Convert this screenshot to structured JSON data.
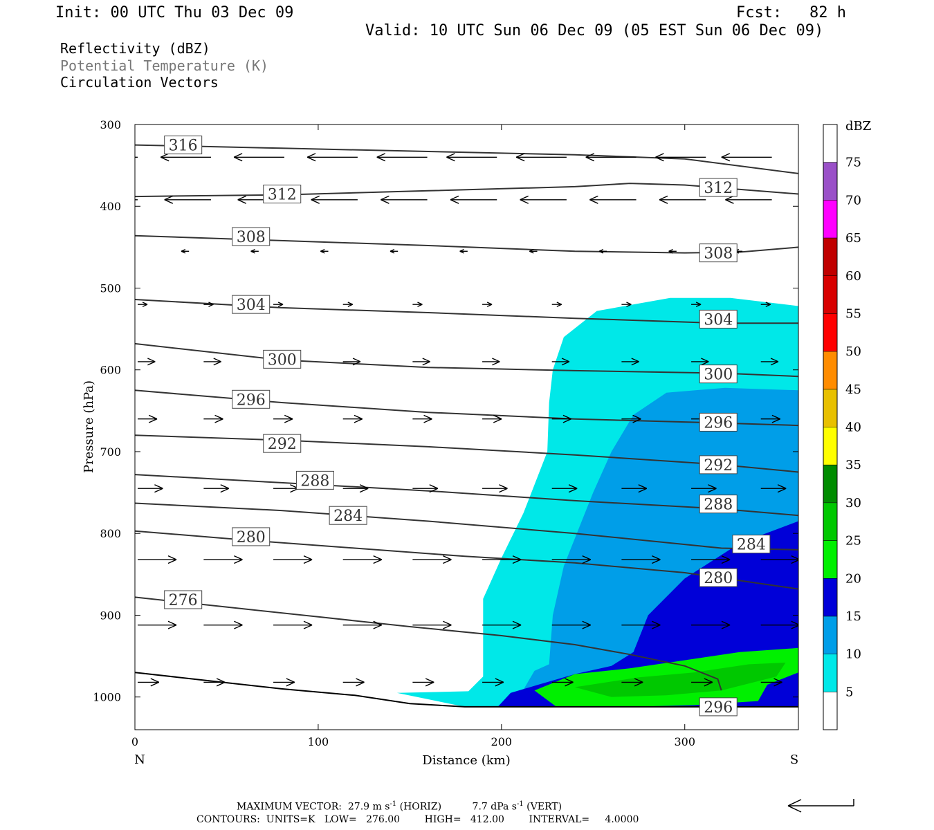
{
  "header": {
    "init": "Init: 00 UTC Thu 03 Dec 09",
    "fcst": "Fcst:   82 h",
    "valid": "Valid: 10 UTC Sun 06 Dec 09 (05 EST Sun 06 Dec 09)"
  },
  "fields": [
    {
      "label": "Reflectivity (dBZ)",
      "color": "#000000"
    },
    {
      "label": "Potential Temperature (K)",
      "color": "#777777"
    },
    {
      "label": "Circulation Vectors",
      "color": "#000000"
    }
  ],
  "footer": {
    "max_vector_prefix": "MAXIMUM VECTOR:  27.9 m s",
    "max_vector_mid": " (HORIZ)          7.7 dPa s",
    "max_vector_suffix": " (VERT)",
    "superscript": "-1",
    "contours": "CONTOURS:  UNITS=K   LOW=   276.00        HIGH=   412.00        INTERVAL=     4.0000"
  },
  "chart_data": {
    "type": "cross-section",
    "xlabel": "Distance (km)",
    "ylabel": "Pressure (hPa)",
    "xlim": [
      0,
      362
    ],
    "ylim": [
      1040,
      300
    ],
    "x_ticks": [
      0,
      100,
      200,
      300
    ],
    "y_ticks": [
      300,
      400,
      500,
      600,
      700,
      800,
      900,
      1000
    ],
    "x_end_labels": {
      "left": "N",
      "right": "S"
    },
    "colorbar": {
      "unit": "dBZ",
      "levels": [
        0,
        5,
        10,
        15,
        20,
        25,
        30,
        35,
        40,
        45,
        50,
        55,
        60,
        65,
        70,
        75,
        80
      ],
      "tick_labels": [
        "5",
        "10",
        "15",
        "20",
        "25",
        "30",
        "35",
        "40",
        "45",
        "50",
        "55",
        "60",
        "65",
        "70",
        "75"
      ],
      "colors": [
        "#ffffff",
        "#00e8e8",
        "#009ee8",
        "#0000d8",
        "#00f000",
        "#00c800",
        "#008c00",
        "#ffff00",
        "#e8c000",
        "#ff8c00",
        "#ff0000",
        "#d80000",
        "#c00000",
        "#ff00ff",
        "#9a50c8",
        "#ffffff"
      ]
    },
    "reflectivity_regions": [
      {
        "dbz": 5,
        "points": [
          [
            143,
            995
          ],
          [
            182,
            993
          ],
          [
            190,
            975
          ],
          [
            190,
            880
          ],
          [
            200,
            830
          ],
          [
            212,
            775
          ],
          [
            225,
            700
          ],
          [
            226,
            640
          ],
          [
            228,
            600
          ],
          [
            234,
            560
          ],
          [
            252,
            528
          ],
          [
            292,
            512
          ],
          [
            325,
            512
          ],
          [
            362,
            522
          ],
          [
            362,
            1012
          ],
          [
            180,
            1012
          ]
        ]
      },
      {
        "dbz": 10,
        "points": [
          [
            182,
            1010
          ],
          [
            207,
            1010
          ],
          [
            218,
            968
          ],
          [
            226,
            960
          ],
          [
            228,
            900
          ],
          [
            234,
            840
          ],
          [
            250,
            750
          ],
          [
            260,
            700
          ],
          [
            272,
            655
          ],
          [
            290,
            628
          ],
          [
            322,
            622
          ],
          [
            362,
            625
          ],
          [
            362,
            1012
          ]
        ]
      },
      {
        "dbz": 15,
        "points": [
          [
            198,
            1012
          ],
          [
            205,
            995
          ],
          [
            220,
            985
          ],
          [
            240,
            972
          ],
          [
            260,
            962
          ],
          [
            272,
            945
          ],
          [
            280,
            900
          ],
          [
            300,
            855
          ],
          [
            330,
            812
          ],
          [
            362,
            785
          ],
          [
            362,
            1012
          ]
        ]
      },
      {
        "dbz": 20,
        "points": [
          [
            218,
            992
          ],
          [
            240,
            972
          ],
          [
            270,
            965
          ],
          [
            300,
            955
          ],
          [
            330,
            945
          ],
          [
            362,
            940
          ],
          [
            362,
            970
          ],
          [
            345,
            985
          ],
          [
            340,
            1005
          ],
          [
            305,
            1010
          ],
          [
            270,
            1012
          ],
          [
            230,
            1012
          ]
        ]
      },
      {
        "dbz": 25,
        "points": [
          [
            240,
            988
          ],
          [
            275,
            976
          ],
          [
            305,
            970
          ],
          [
            335,
            960
          ],
          [
            355,
            958
          ],
          [
            350,
            975
          ],
          [
            320,
            992
          ],
          [
            290,
            998
          ],
          [
            260,
            1000
          ]
        ]
      }
    ],
    "theta_contours": [
      {
        "value": 276,
        "label_x": 18,
        "points": [
          [
            0,
            878
          ],
          [
            50,
            890
          ],
          [
            100,
            902
          ],
          [
            150,
            914
          ],
          [
            200,
            925
          ],
          [
            240,
            936
          ],
          [
            270,
            948
          ],
          [
            300,
            962
          ],
          [
            318,
            978
          ],
          [
            320,
            992
          ]
        ]
      },
      {
        "value": 280,
        "label_x": 55,
        "points": [
          [
            0,
            797
          ],
          [
            60,
            808
          ],
          [
            120,
            818
          ],
          [
            180,
            828
          ],
          [
            240,
            836
          ],
          [
            300,
            848
          ],
          [
            362,
            868
          ]
        ]
      },
      {
        "value": 284,
        "label_x": 109,
        "label_y": 763,
        "points": [
          [
            0,
            763
          ],
          [
            80,
            772
          ],
          [
            160,
            785
          ],
          [
            240,
            800
          ],
          [
            320,
            818
          ],
          [
            362,
            820
          ]
        ]
      },
      {
        "value": 288,
        "label_x": 91,
        "label_y": 735,
        "points": [
          [
            0,
            728
          ],
          [
            80,
            738
          ],
          [
            160,
            748
          ],
          [
            240,
            760
          ],
          [
            320,
            770
          ],
          [
            362,
            778
          ]
        ]
      },
      {
        "value": 292,
        "label_x": 72,
        "points": [
          [
            0,
            680
          ],
          [
            80,
            686
          ],
          [
            160,
            694
          ],
          [
            240,
            704
          ],
          [
            320,
            716
          ],
          [
            362,
            725
          ]
        ]
      },
      {
        "value": 296,
        "label_x": 55,
        "points": [
          [
            0,
            625
          ],
          [
            80,
            640
          ],
          [
            160,
            652
          ],
          [
            240,
            660
          ],
          [
            320,
            665
          ],
          [
            362,
            668
          ]
        ]
      },
      {
        "value": 300,
        "label_x": 72,
        "points": [
          [
            0,
            568
          ],
          [
            80,
            588
          ],
          [
            160,
            597
          ],
          [
            240,
            601
          ],
          [
            320,
            604
          ],
          [
            362,
            608
          ]
        ]
      },
      {
        "value": 304,
        "label_x": 55,
        "points": [
          [
            0,
            514
          ],
          [
            80,
            524
          ],
          [
            160,
            530
          ],
          [
            240,
            537
          ],
          [
            320,
            543
          ],
          [
            362,
            543
          ]
        ]
      },
      {
        "value": 308,
        "label_x": 55,
        "points": [
          [
            0,
            436
          ],
          [
            80,
            442
          ],
          [
            160,
            448
          ],
          [
            240,
            455
          ],
          [
            300,
            457
          ],
          [
            330,
            456
          ],
          [
            362,
            450
          ]
        ]
      },
      {
        "value": 312,
        "label_x": 72,
        "points": [
          [
            0,
            388
          ],
          [
            80,
            386
          ],
          [
            160,
            381
          ],
          [
            240,
            376
          ],
          [
            270,
            372
          ],
          [
            300,
            374
          ],
          [
            362,
            385
          ]
        ]
      },
      {
        "value": 316,
        "label_x": 18,
        "points": [
          [
            0,
            325
          ],
          [
            80,
            329
          ],
          [
            160,
            333
          ],
          [
            240,
            337
          ],
          [
            300,
            342
          ],
          [
            362,
            360
          ]
        ]
      }
    ],
    "theta_labels": [
      {
        "text": "316",
        "x": 18,
        "p": 325
      },
      {
        "text": "312",
        "x": 72,
        "p": 385
      },
      {
        "text": "312",
        "x": 310,
        "p": 377
      },
      {
        "text": "308",
        "x": 55,
        "p": 437
      },
      {
        "text": "308",
        "x": 310,
        "p": 457
      },
      {
        "text": "304",
        "x": 55,
        "p": 520
      },
      {
        "text": "304",
        "x": 310,
        "p": 538
      },
      {
        "text": "300",
        "x": 72,
        "p": 587
      },
      {
        "text": "300",
        "x": 310,
        "p": 605
      },
      {
        "text": "296",
        "x": 55,
        "p": 636
      },
      {
        "text": "296",
        "x": 310,
        "p": 664
      },
      {
        "text": "292",
        "x": 72,
        "p": 690
      },
      {
        "text": "292",
        "x": 310,
        "p": 716
      },
      {
        "text": "288",
        "x": 90,
        "p": 735
      },
      {
        "text": "288",
        "x": 310,
        "p": 764
      },
      {
        "text": "284",
        "x": 108,
        "p": 778
      },
      {
        "text": "284",
        "x": 328,
        "p": 813
      },
      {
        "text": "280",
        "x": 55,
        "p": 804
      },
      {
        "text": "280",
        "x": 310,
        "p": 854
      },
      {
        "text": "276",
        "x": 18,
        "p": 881
      },
      {
        "text": "296",
        "x": 310,
        "p": 1012
      }
    ],
    "vector_rows": [
      {
        "p": 340,
        "u": -26,
        "xs": [
          0,
          40,
          80,
          120,
          158,
          196,
          234,
          272,
          310,
          346
        ]
      },
      {
        "p": 392,
        "u": -24,
        "xs": [
          0,
          40,
          80,
          120,
          158,
          196,
          234,
          272,
          310,
          346
        ]
      },
      {
        "p": 455,
        "u": -4,
        "xs": [
          28,
          66,
          104,
          142,
          180,
          218,
          256,
          294,
          330
        ]
      },
      {
        "p": 520,
        "u": 5,
        "xs": [
          0,
          36,
          74,
          112,
          150,
          188,
          226,
          264,
          302,
          340
        ]
      },
      {
        "p": 590,
        "u": 9,
        "xs": [
          0,
          36,
          74,
          112,
          150,
          188,
          226,
          264,
          302,
          340
        ]
      },
      {
        "p": 660,
        "u": 10,
        "xs": [
          0,
          36,
          74,
          112,
          150,
          188,
          226,
          264,
          302,
          340
        ]
      },
      {
        "p": 745,
        "u": 13,
        "xs": [
          0,
          36,
          74,
          112,
          150,
          188,
          226,
          264,
          302,
          340
        ]
      },
      {
        "p": 832,
        "u": 20,
        "xs": [
          0,
          36,
          74,
          112,
          150,
          188,
          226,
          264,
          302,
          340
        ]
      },
      {
        "p": 912,
        "u": 20,
        "xs": [
          0,
          36,
          74,
          112,
          150,
          188,
          226,
          264,
          302,
          340
        ]
      },
      {
        "p": 982,
        "u": 11,
        "xs": [
          0,
          36,
          74,
          112,
          150,
          188,
          226,
          264,
          302,
          340
        ]
      }
    ],
    "surface_line": [
      [
        0,
        970
      ],
      [
        40,
        980
      ],
      [
        80,
        990
      ],
      [
        120,
        998
      ],
      [
        150,
        1008
      ],
      [
        180,
        1012
      ],
      [
        362,
        1012
      ]
    ]
  }
}
